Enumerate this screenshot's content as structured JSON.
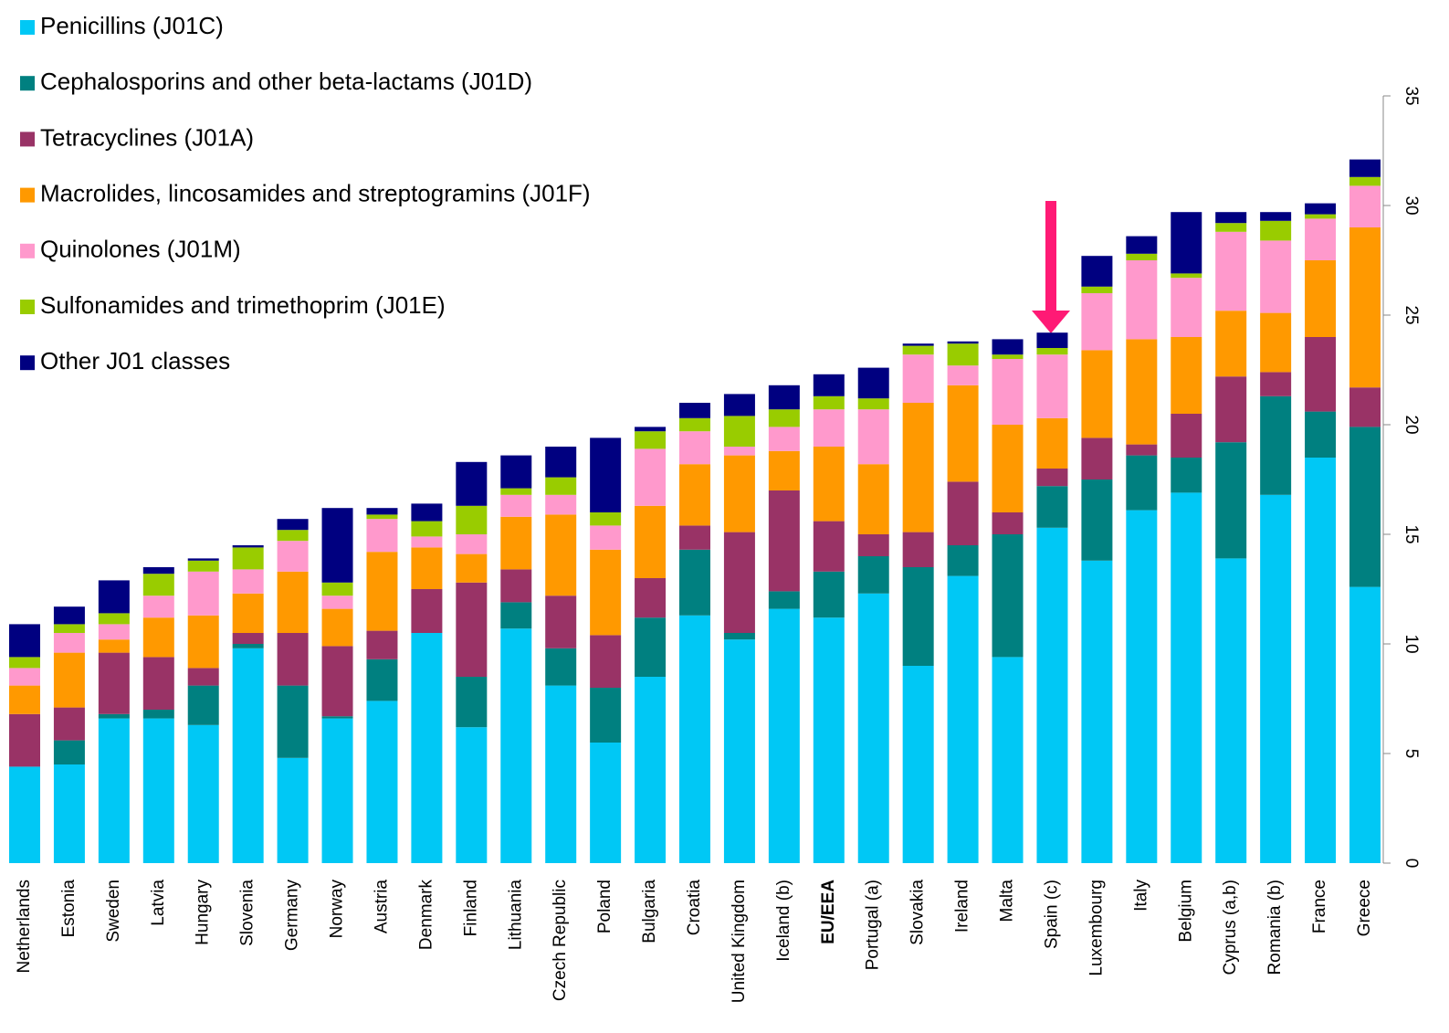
{
  "chart_data": {
    "type": "stacked_bar",
    "categories": [
      "Netherlands",
      "Estonia",
      "Sweden",
      "Latvia",
      "Hungary",
      "Slovenia",
      "Germany",
      "Norway",
      "Austria",
      "Denmark",
      "Finland",
      "Lithuania",
      "Czech Republic",
      "Poland",
      "Bulgaria",
      "Croatia",
      "United Kingdom",
      "Iceland (b)",
      "EU/EEA",
      "Portugal (a)",
      "Slovakia",
      "Ireland",
      "Malta",
      "Spain (c)",
      "Luxembourg",
      "Italy",
      "Belgium",
      "Cyprus (a,b)",
      "Romania (b)",
      "France",
      "Greece"
    ],
    "series": [
      {
        "name": "Penicillins (J01C)",
        "color": "#00c8f5",
        "values": [
          4.4,
          4.5,
          6.6,
          6.6,
          6.3,
          9.8,
          4.8,
          6.6,
          7.4,
          10.5,
          6.2,
          10.7,
          8.1,
          5.5,
          8.5,
          11.3,
          10.2,
          11.6,
          11.2,
          12.3,
          9.0,
          13.1,
          9.4,
          15.3,
          13.8,
          16.1,
          16.9,
          13.9,
          16.8,
          18.5,
          12.6
        ]
      },
      {
        "name": "Cephalosporins and other beta-lactams (J01D)",
        "color": "#008080",
        "values": [
          0,
          1.1,
          0.2,
          0.4,
          1.8,
          0.2,
          3.3,
          0.1,
          1.9,
          0,
          2.3,
          1.2,
          1.7,
          2.5,
          2.7,
          3.0,
          0.3,
          0.8,
          2.1,
          1.7,
          4.5,
          1.4,
          5.6,
          1.9,
          3.7,
          2.5,
          1.6,
          5.3,
          4.5,
          2.1,
          7.3
        ]
      },
      {
        "name": "Tetracyclines (J01A)",
        "color": "#993366",
        "values": [
          2.4,
          1.5,
          2.8,
          2.4,
          0.8,
          0.5,
          2.4,
          3.2,
          1.3,
          2.0,
          4.3,
          1.5,
          2.4,
          2.4,
          1.8,
          1.1,
          4.6,
          4.6,
          2.3,
          1.0,
          1.6,
          2.9,
          1.0,
          0.8,
          1.9,
          0.5,
          2.0,
          3.0,
          1.1,
          3.4,
          1.8
        ]
      },
      {
        "name": "Macrolides, lincosamides and streptogramins (J01F)",
        "color": "#ff9900",
        "values": [
          1.3,
          2.5,
          0.6,
          1.8,
          2.4,
          1.8,
          2.8,
          1.7,
          3.6,
          1.9,
          1.3,
          2.4,
          3.7,
          3.9,
          3.3,
          2.8,
          3.5,
          1.8,
          3.4,
          3.2,
          5.9,
          4.4,
          4.0,
          2.3,
          4.0,
          4.8,
          3.5,
          3.0,
          2.7,
          3.5,
          7.3
        ]
      },
      {
        "name": "Quinolones (J01M)",
        "color": "#ff99cc",
        "values": [
          0.8,
          0.9,
          0.7,
          1.0,
          2.0,
          1.1,
          1.4,
          0.6,
          1.5,
          0.5,
          0.9,
          1.0,
          0.9,
          1.1,
          2.6,
          1.5,
          0.4,
          1.1,
          1.7,
          2.5,
          2.2,
          0.9,
          3.0,
          2.9,
          2.6,
          3.6,
          2.7,
          3.6,
          3.3,
          1.9,
          1.9
        ]
      },
      {
        "name": "Sulfonamides and trimethoprim (J01E)",
        "color": "#99cc00",
        "values": [
          0.5,
          0.4,
          0.5,
          1.0,
          0.5,
          1.0,
          0.5,
          0.6,
          0.2,
          0.7,
          1.3,
          0.3,
          0.8,
          0.6,
          0.8,
          0.6,
          1.4,
          0.8,
          0.6,
          0.5,
          0.4,
          1.0,
          0.2,
          0.3,
          0.3,
          0.3,
          0.2,
          0.4,
          0.9,
          0.2,
          0.4
        ]
      },
      {
        "name": "Other J01 classes",
        "color": "#000080",
        "values": [
          1.5,
          0.8,
          1.5,
          0.3,
          0.1,
          0.1,
          0.5,
          3.4,
          0.3,
          0.8,
          2.0,
          1.5,
          1.4,
          3.4,
          0.2,
          0.7,
          1.0,
          1.1,
          1.0,
          1.4,
          0.1,
          0.1,
          0.7,
          0.7,
          1.4,
          0.8,
          2.8,
          0.5,
          0.4,
          0.5,
          0.8
        ]
      }
    ],
    "ylim": [
      0,
      35
    ],
    "yticks": [
      0,
      5,
      10,
      15,
      20,
      25,
      30,
      35
    ],
    "grid": false,
    "legend": "top-left"
  }
}
